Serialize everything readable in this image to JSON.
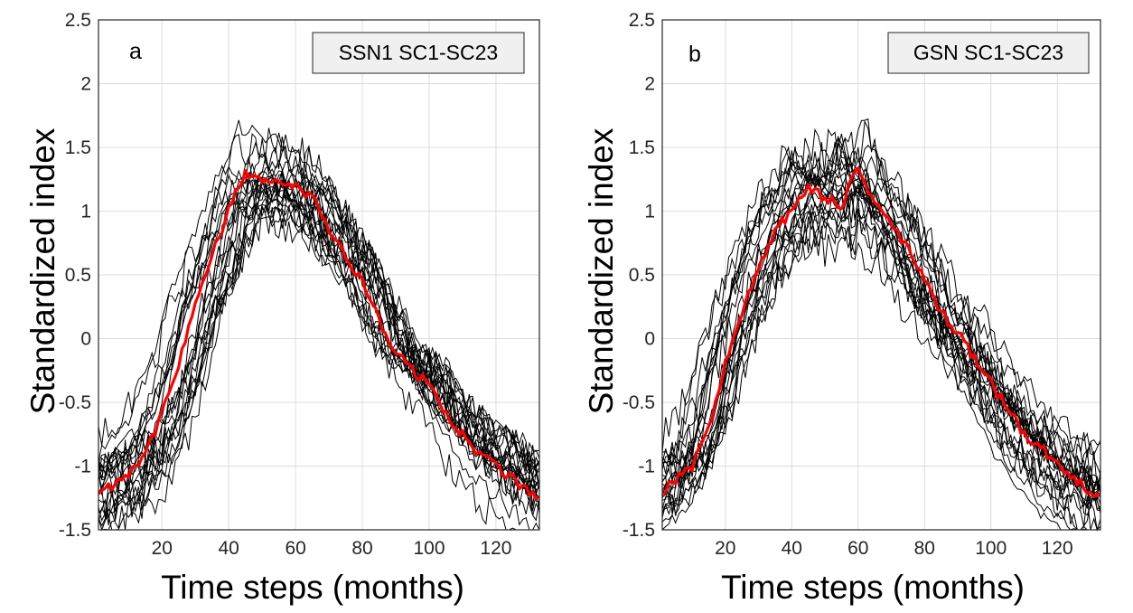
{
  "colors": {
    "member": "#000000",
    "mean": "#ff0000",
    "legend_bg": "#f0f0f0",
    "grid": "#dcdcdc"
  },
  "chart_data": [
    {
      "type": "line",
      "panel": "a",
      "legend": "SSN1 SC1-SC23",
      "xlabel": "Time steps (months)",
      "ylabel": "Standardized index",
      "xlim": [
        1,
        133
      ],
      "ylim": [
        -1.5,
        2.5
      ],
      "xticks": [
        20,
        40,
        60,
        80,
        100,
        120
      ],
      "yticks": [
        -1.5,
        -1,
        -0.5,
        0,
        0.5,
        1,
        1.5,
        2,
        2.5
      ],
      "xtick_labels": [
        "20",
        "40",
        "60",
        "80",
        "100",
        "120"
      ],
      "ytick_labels": [
        "-1.5",
        "-1",
        "-0.5",
        "0",
        "0.5",
        "1",
        "1.5",
        "2",
        "2.5"
      ],
      "grid": true,
      "mean_series": {
        "name": "mean",
        "color": "#ff0000",
        "points": [
          [
            1,
            -1.2
          ],
          [
            5,
            -1.15
          ],
          [
            10,
            -1.05
          ],
          [
            15,
            -0.9
          ],
          [
            20,
            -0.6
          ],
          [
            25,
            -0.2
          ],
          [
            30,
            0.3
          ],
          [
            35,
            0.65
          ],
          [
            38,
            0.85
          ],
          [
            40,
            1.0
          ],
          [
            42,
            1.15
          ],
          [
            45,
            1.3
          ],
          [
            50,
            1.25
          ],
          [
            55,
            1.2
          ],
          [
            60,
            1.2
          ],
          [
            65,
            1.1
          ],
          [
            70,
            0.85
          ],
          [
            75,
            0.65
          ],
          [
            80,
            0.45
          ],
          [
            85,
            0.15
          ],
          [
            90,
            -0.1
          ],
          [
            95,
            -0.25
          ],
          [
            100,
            -0.35
          ],
          [
            105,
            -0.6
          ],
          [
            110,
            -0.75
          ],
          [
            115,
            -0.9
          ],
          [
            120,
            -1.0
          ],
          [
            125,
            -1.1
          ],
          [
            130,
            -1.2
          ],
          [
            133,
            -1.25
          ]
        ]
      },
      "member_count": 23,
      "member_spread_note": "23 individual solar cycles (SC1-SC23) drawn as thin black lines around the mean"
    },
    {
      "type": "line",
      "panel": "b",
      "legend": "GSN SC1-SC23",
      "xlabel": "Time steps (months)",
      "ylabel": "Standardized index",
      "xlim": [
        1,
        133
      ],
      "ylim": [
        -1.5,
        2.5
      ],
      "xticks": [
        20,
        40,
        60,
        80,
        100,
        120
      ],
      "yticks": [
        -1.5,
        -1,
        -0.5,
        0,
        0.5,
        1,
        1.5,
        2,
        2.5
      ],
      "xtick_labels": [
        "20",
        "40",
        "60",
        "80",
        "100",
        "120"
      ],
      "ytick_labels": [
        "-1.5",
        "-1",
        "-0.5",
        "0",
        "0.5",
        "1",
        "1.5",
        "2",
        "2.5"
      ],
      "grid": true,
      "mean_series": {
        "name": "mean",
        "color": "#ff0000",
        "points": [
          [
            1,
            -1.2
          ],
          [
            5,
            -1.1
          ],
          [
            10,
            -1.0
          ],
          [
            15,
            -0.7
          ],
          [
            20,
            -0.2
          ],
          [
            25,
            0.2
          ],
          [
            30,
            0.55
          ],
          [
            35,
            0.85
          ],
          [
            40,
            1.0
          ],
          [
            45,
            1.2
          ],
          [
            50,
            1.1
          ],
          [
            55,
            1.05
          ],
          [
            60,
            1.35
          ],
          [
            65,
            1.05
          ],
          [
            70,
            0.9
          ],
          [
            75,
            0.7
          ],
          [
            80,
            0.45
          ],
          [
            85,
            0.2
          ],
          [
            90,
            0.05
          ],
          [
            95,
            -0.15
          ],
          [
            100,
            -0.35
          ],
          [
            105,
            -0.55
          ],
          [
            110,
            -0.75
          ],
          [
            115,
            -0.85
          ],
          [
            120,
            -1.0
          ],
          [
            125,
            -1.1
          ],
          [
            130,
            -1.2
          ],
          [
            133,
            -1.22
          ]
        ]
      },
      "member_count": 23,
      "member_spread_note": "23 individual solar cycles (SC1-SC23) drawn as thin black lines around the mean"
    }
  ]
}
